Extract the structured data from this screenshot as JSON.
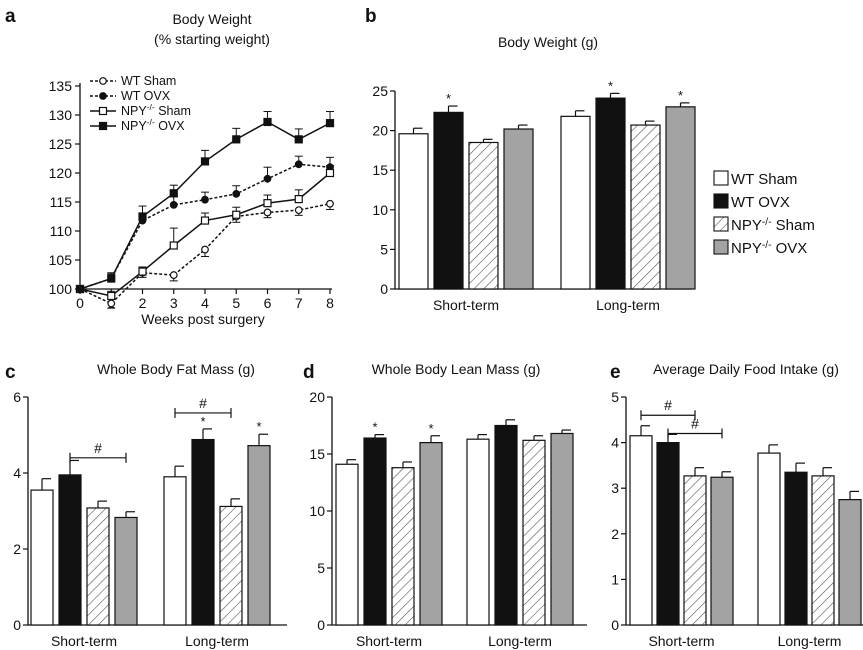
{
  "colors": {
    "wt_sham": "#ffffff",
    "wt_ovx": "#111111",
    "npy_sham_hatch": "#555555",
    "npy_ovx": "#a3a3a3",
    "axis": "#111111"
  },
  "legend_b": {
    "items": [
      {
        "key": "wt_sham",
        "label": "WT Sham",
        "sup": ""
      },
      {
        "key": "wt_ovx",
        "label": "WT OVX",
        "sup": ""
      },
      {
        "key": "npy_sham",
        "label": "NPY",
        "sup": "-/-",
        "suffix": " Sham"
      },
      {
        "key": "npy_ovx",
        "label": "NPY",
        "sup": "-/-",
        "suffix": " OVX"
      }
    ]
  },
  "chart_data": [
    {
      "panel": "a",
      "type": "line",
      "title": "Body Weight",
      "subtitle": "(% starting weight)",
      "xlabel": "Weeks post surgery",
      "ylabel": "",
      "x": [
        0,
        1,
        2,
        3,
        4,
        5,
        6,
        7,
        8
      ],
      "xlim": [
        0,
        8
      ],
      "ylim": [
        100,
        135
      ],
      "yticks": [
        100,
        105,
        110,
        115,
        120,
        125,
        130,
        135
      ],
      "legend": "top-left",
      "series": [
        {
          "name": "WT Sham",
          "legend_label": "WT Sham",
          "sup": "",
          "suffix": "",
          "marker": "open-circle",
          "dash": true,
          "values": [
            100,
            97.5,
            102.8,
            102.4,
            106.8,
            112.5,
            113.2,
            113.6,
            114.7
          ],
          "err": [
            0,
            0.8,
            0.8,
            1.0,
            1.2,
            1.0,
            0.9,
            0.9,
            1.0
          ]
        },
        {
          "name": "WT OVX",
          "legend_label": "WT OVX",
          "sup": "",
          "suffix": "",
          "marker": "filled-circle",
          "dash": true,
          "values": [
            100,
            101.8,
            111.8,
            114.5,
            115.4,
            116.4,
            119.0,
            121.5,
            121.0
          ],
          "err": [
            0,
            0.8,
            1.3,
            1.4,
            1.3,
            1.4,
            2.0,
            1.4,
            1.7
          ]
        },
        {
          "name": "NPY-/- Sham",
          "legend_label": "NPY",
          "sup": "-/-",
          "suffix": " Sham",
          "marker": "open-square",
          "dash": false,
          "values": [
            100,
            98.8,
            103.0,
            107.5,
            111.8,
            112.8,
            114.8,
            115.5,
            120.0
          ],
          "err": [
            0,
            0.8,
            0.8,
            3.0,
            1.3,
            1.3,
            1.4,
            1.6,
            1.3
          ]
        },
        {
          "name": "NPY-/- OVX",
          "legend_label": "NPY",
          "sup": "-/-",
          "suffix": " OVX",
          "marker": "filled-square",
          "dash": false,
          "values": [
            100,
            101.8,
            112.5,
            116.5,
            122.0,
            125.8,
            128.8,
            125.8,
            128.6
          ],
          "err": [
            0,
            1.0,
            1.8,
            1.4,
            1.9,
            1.9,
            1.8,
            1.8,
            2.0
          ]
        }
      ]
    },
    {
      "panel": "b",
      "type": "bar",
      "title": "Body Weight (g)",
      "categories": [
        "Short-term",
        "Long-term"
      ],
      "ylim": [
        0,
        25
      ],
      "yticks": [
        0,
        5,
        10,
        15,
        20,
        25
      ],
      "legend": "right",
      "series": [
        {
          "name": "WT Sham",
          "values": [
            19.6,
            21.8
          ],
          "err": [
            0.7,
            0.7
          ],
          "sig": [
            "",
            ""
          ]
        },
        {
          "name": "WT OVX",
          "values": [
            22.3,
            24.1
          ],
          "err": [
            0.8,
            0.6
          ],
          "sig": [
            "*",
            "*"
          ]
        },
        {
          "name": "NPY-/- Sham",
          "values": [
            18.5,
            20.7
          ],
          "err": [
            0.4,
            0.5
          ],
          "sig": [
            "",
            ""
          ]
        },
        {
          "name": "NPY-/- OVX",
          "values": [
            20.2,
            23.0
          ],
          "err": [
            0.5,
            0.5
          ],
          "sig": [
            "",
            "*"
          ]
        }
      ],
      "brackets": []
    },
    {
      "panel": "c",
      "type": "bar",
      "title": "Whole Body Fat Mass (g)",
      "categories": [
        "Short-term",
        "Long-term"
      ],
      "ylim": [
        0,
        6
      ],
      "yticks": [
        0,
        2,
        4,
        6
      ],
      "series": [
        {
          "name": "WT Sham",
          "values": [
            3.55,
            3.9
          ],
          "err": [
            0.3,
            0.28
          ],
          "sig": [
            "",
            ""
          ]
        },
        {
          "name": "WT OVX",
          "values": [
            3.95,
            4.88
          ],
          "err": [
            0.38,
            0.28
          ],
          "sig": [
            "",
            "*"
          ]
        },
        {
          "name": "NPY-/- Sham",
          "values": [
            3.08,
            3.12
          ],
          "err": [
            0.18,
            0.2
          ],
          "sig": [
            "",
            ""
          ]
        },
        {
          "name": "NPY-/- OVX",
          "values": [
            2.83,
            4.72
          ],
          "err": [
            0.15,
            0.3
          ],
          "sig": [
            "",
            "*"
          ]
        }
      ],
      "brackets": [
        {
          "label": "#",
          "group": 0,
          "from": 1,
          "to": 3,
          "y": 4.4
        },
        {
          "label": "#",
          "group": 1,
          "from": 0,
          "to": 2,
          "y": 5.58
        }
      ]
    },
    {
      "panel": "d",
      "type": "bar",
      "title": "Whole Body Lean Mass (g)",
      "categories": [
        "Short-term",
        "Long-term"
      ],
      "ylim": [
        0,
        20
      ],
      "yticks": [
        0,
        5,
        10,
        15,
        20
      ],
      "series": [
        {
          "name": "WT Sham",
          "values": [
            14.1,
            16.3
          ],
          "err": [
            0.4,
            0.4
          ],
          "sig": [
            "",
            ""
          ]
        },
        {
          "name": "WT OVX",
          "values": [
            16.4,
            17.5
          ],
          "err": [
            0.3,
            0.5
          ],
          "sig": [
            "*",
            ""
          ]
        },
        {
          "name": "NPY-/- Sham",
          "values": [
            13.8,
            16.2
          ],
          "err": [
            0.5,
            0.4
          ],
          "sig": [
            "",
            ""
          ]
        },
        {
          "name": "NPY-/- OVX",
          "values": [
            16.0,
            16.8
          ],
          "err": [
            0.6,
            0.3
          ],
          "sig": [
            "*",
            ""
          ]
        }
      ],
      "brackets": []
    },
    {
      "panel": "e",
      "type": "bar",
      "title": "Average Daily Food Intake (g)",
      "categories": [
        "Short-term",
        "Long-term"
      ],
      "ylim": [
        0,
        5
      ],
      "yticks": [
        0,
        1,
        2,
        3,
        4,
        5
      ],
      "series": [
        {
          "name": "WT Sham",
          "values": [
            4.15,
            3.77
          ],
          "err": [
            0.22,
            0.18
          ],
          "sig": [
            "",
            ""
          ]
        },
        {
          "name": "WT OVX",
          "values": [
            4.0,
            3.35
          ],
          "err": [
            0.18,
            0.2
          ],
          "sig": [
            "",
            ""
          ]
        },
        {
          "name": "NPY-/- Sham",
          "values": [
            3.27,
            3.27
          ],
          "err": [
            0.18,
            0.18
          ],
          "sig": [
            "",
            ""
          ]
        },
        {
          "name": "NPY-/- OVX",
          "values": [
            3.24,
            2.75
          ],
          "err": [
            0.12,
            0.18
          ],
          "sig": [
            "",
            ""
          ]
        }
      ],
      "brackets": [
        {
          "label": "#",
          "group": 0,
          "from": 0,
          "to": 2,
          "y": 4.6
        },
        {
          "label": "#",
          "group": 0,
          "from": 1,
          "to": 3,
          "y": 4.2
        }
      ]
    }
  ]
}
